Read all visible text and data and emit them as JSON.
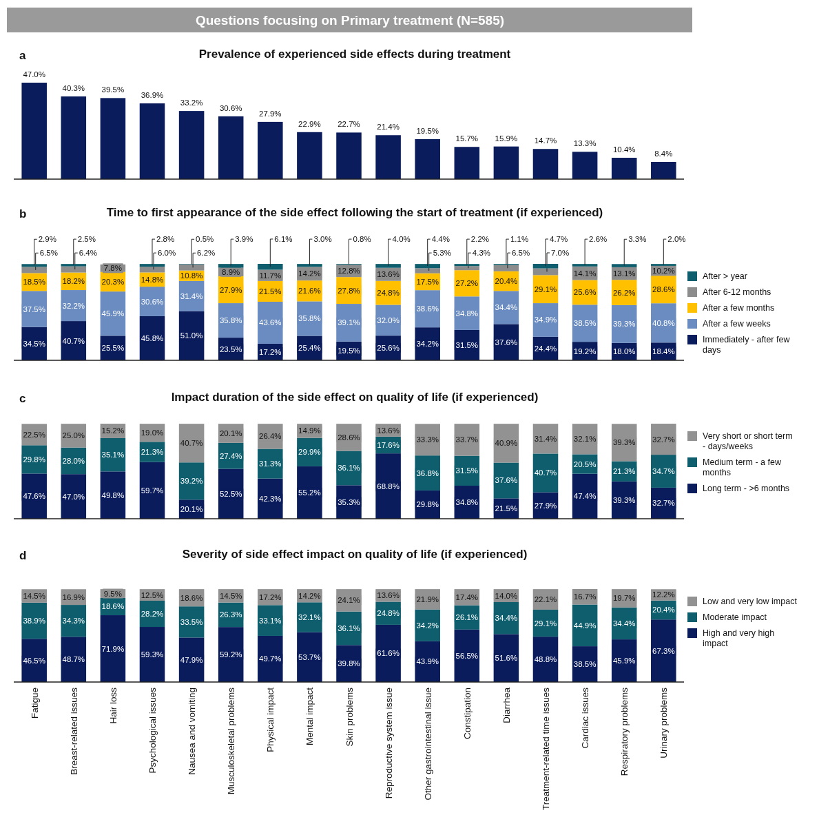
{
  "chart_data": [
    {
      "type": "bar",
      "title": "Questions focusing on Primary treatment (N=585)",
      "subtitle": "Prevalence of experienced side effects during treatment",
      "annotations": [
        "a"
      ],
      "categories": [
        null,
        null,
        null,
        null,
        null,
        null,
        null,
        null,
        null,
        null,
        null,
        null,
        null,
        null,
        null,
        null,
        null
      ],
      "tick_labels": false,
      "series": [
        {
          "color": "#0b1c5c",
          "values": [
            47.0,
            40.3,
            39.5,
            36.9,
            33.2,
            30.6,
            27.9,
            22.9,
            22.7,
            21.4,
            19.5,
            15.7,
            15.9,
            14.7,
            13.3,
            10.4,
            8.4
          ],
          "value_labels": [
            "47.0%",
            "40.3%",
            "39.5%",
            "36.9%",
            "33.2%",
            "30.6%",
            "27.9%",
            "22.9%",
            "22.7%",
            "21.4%",
            "19.5%",
            "15.7%",
            "15.9%",
            "14.7%",
            "13.3%",
            "10.4%",
            "8.4%"
          ]
        }
      ]
    },
    {
      "type": "bar",
      "stacked": true,
      "title": "Time to first appearance of the side effect following the start of treatment (if experienced)",
      "annotations": [
        "b"
      ],
      "categories": [
        null,
        null,
        null,
        null,
        null,
        null,
        null,
        null,
        null,
        null,
        null,
        null,
        null,
        null,
        null,
        null,
        null
      ],
      "tick_labels": false,
      "legend": "right",
      "series": [
        {
          "name": "Immediately - after few days",
          "color": "#0b1c5c",
          "values": [
            34.5,
            40.7,
            25.5,
            45.8,
            51.0,
            23.5,
            17.2,
            25.4,
            19.5,
            25.6,
            34.2,
            31.5,
            37.6,
            24.4,
            19.2,
            18.0,
            18.4
          ],
          "value_labels": [
            "34.5%",
            "40.7%",
            "25.5%",
            "45.8%",
            "51.0%",
            "23.5%",
            "17.2%",
            "25.4%",
            "19.5%",
            "25.6%",
            "34.2%",
            "31.5%",
            "37.6%",
            "24.4%",
            "19.2%",
            "18.0%",
            "18.4%"
          ]
        },
        {
          "name": "After a few weeks",
          "color": "#6b8cc0",
          "values": [
            37.5,
            32.2,
            45.9,
            30.6,
            31.4,
            35.8,
            43.6,
            35.8,
            39.1,
            32.0,
            38.6,
            34.8,
            34.4,
            34.9,
            38.5,
            39.3,
            40.8
          ],
          "value_labels": [
            "37.5%",
            "32.2%",
            "45.9%",
            "30.6%",
            "31.4%",
            "35.8%",
            "43.6%",
            "35.8%",
            "39.1%",
            "32.0%",
            "38.6%",
            "34.8%",
            "34.4%",
            "34.9%",
            "38.5%",
            "39.3%",
            "40.8%"
          ]
        },
        {
          "name": "After a few months",
          "color": "#ffc000",
          "values": [
            18.5,
            18.2,
            20.3,
            14.8,
            10.8,
            27.9,
            21.5,
            21.6,
            27.8,
            24.8,
            17.5,
            27.2,
            20.4,
            29.1,
            25.6,
            26.2,
            28.6
          ],
          "value_labels": [
            "18.5%",
            "18.2%",
            "20.3%",
            "14.8%",
            "10.8%",
            "27.9%",
            "21.5%",
            "21.6%",
            "27.8%",
            "24.8%",
            "17.5%",
            "27.2%",
            "20.4%",
            "29.1%",
            "25.6%",
            "26.2%",
            "28.6%"
          ]
        },
        {
          "name": "After 6-12 months",
          "color": "#8c8c8c",
          "values": [
            6.5,
            6.4,
            7.8,
            6.0,
            6.2,
            8.9,
            11.7,
            14.2,
            12.8,
            13.6,
            5.3,
            4.3,
            6.5,
            7.0,
            14.1,
            13.1,
            10.2
          ],
          "value_labels": [
            "6.5%",
            "6.4%",
            "7.8%",
            "6.0%",
            "6.2%",
            "8.9%",
            "11.7%",
            "14.2%",
            "12.8%",
            "13.6%",
            "5.3%",
            "4.3%",
            "6.5%",
            "7.0%",
            "14.1%",
            "13.1%",
            "10.2%"
          ]
        },
        {
          "name": "After > year",
          "color": "#0f5e6e",
          "values": [
            2.9,
            2.5,
            null,
            2.8,
            0.5,
            3.9,
            6.1,
            3.0,
            0.8,
            4.0,
            4.4,
            2.2,
            1.1,
            4.7,
            2.6,
            3.3,
            2.0
          ],
          "value_labels": [
            "2.9%",
            "2.5%",
            null,
            "2.8%",
            "0.5%",
            "3.9%",
            "6.1%",
            "3.0%",
            "0.8%",
            "4.0%",
            "4.4%",
            "2.2%",
            "1.1%",
            "4.7%",
            "2.6%",
            "3.3%",
            "2.0%"
          ]
        }
      ]
    },
    {
      "type": "bar",
      "stacked": true,
      "title": "Impact duration of the side effect on quality of life (if experienced)",
      "annotations": [
        "c"
      ],
      "categories": [
        null,
        null,
        null,
        null,
        null,
        null,
        null,
        null,
        null,
        null,
        null,
        null,
        null,
        null,
        null,
        null,
        null
      ],
      "tick_labels": false,
      "legend": "right",
      "series": [
        {
          "name": "Long term - >6 months",
          "color": "#0b1c5c",
          "values": [
            47.6,
            47.0,
            49.8,
            59.7,
            20.1,
            52.5,
            42.3,
            55.2,
            35.3,
            68.8,
            29.8,
            34.8,
            21.5,
            27.9,
            47.4,
            39.3,
            32.7
          ],
          "value_labels": [
            "47.6%",
            "47.0%",
            "49.8%",
            "59.7%",
            "20.1%",
            "52.5%",
            "42.3%",
            "55.2%",
            "35.3%",
            "68.8%",
            "29.8%",
            "34.8%",
            "21.5%",
            "27.9%",
            "47.4%",
            "39.3%",
            "32.7%"
          ]
        },
        {
          "name": "Medium term - a few months",
          "color": "#0f5e6e",
          "values": [
            29.8,
            28.0,
            35.1,
            21.3,
            39.2,
            27.4,
            31.3,
            29.9,
            36.1,
            17.6,
            36.8,
            31.5,
            37.6,
            40.7,
            20.5,
            21.3,
            34.7
          ],
          "value_labels": [
            "29.8%",
            "28.0%",
            "35.1%",
            "21.3%",
            "39.2%",
            "27.4%",
            "31.3%",
            "29.9%",
            "36.1%",
            "17.6%",
            "36.8%",
            "31.5%",
            "37.6%",
            "40.7%",
            "20.5%",
            "21.3%",
            "34.7%"
          ]
        },
        {
          "name": "Very short or short term - days/weeks",
          "color": "#929292",
          "values": [
            22.5,
            25.0,
            15.2,
            19.0,
            40.7,
            20.1,
            26.4,
            14.9,
            28.6,
            13.6,
            33.3,
            33.7,
            40.9,
            31.4,
            32.1,
            39.3,
            32.7
          ],
          "value_labels": [
            "22.5%",
            "25.0%",
            "15.2%",
            "19.0%",
            "40.7%",
            "20.1%",
            "26.4%",
            "14.9%",
            "28.6%",
            "13.6%",
            "33.3%",
            "33.7%",
            "40.9%",
            "31.4%",
            "32.1%",
            "39.3%",
            "32.7%"
          ]
        }
      ]
    },
    {
      "type": "bar",
      "stacked": true,
      "title": "Severity of side effect impact on quality of life (if experienced)",
      "annotations": [
        "d"
      ],
      "categories": [
        "Fatigue",
        "Breast-related issues",
        "Hair loss",
        "Psychological issues",
        "Nausea and vomiting",
        "Musculoskeletal problems",
        "Physical impact",
        "Mental impact",
        "Skin problems",
        "Reproductive system issue",
        "Other gastrointestinal issue",
        "Constipation",
        "Diarrhea",
        "Treatment-related time issues",
        "Cardiac issues",
        "Respiratory problems",
        "Urinary problems"
      ],
      "tick_labels": "x",
      "legend": "right",
      "series": [
        {
          "name": "High and very high impact",
          "color": "#0b1c5c",
          "values": [
            46.5,
            48.7,
            71.9,
            59.3,
            47.9,
            59.2,
            49.7,
            53.7,
            39.8,
            61.6,
            43.9,
            56.5,
            51.6,
            48.8,
            38.5,
            45.9,
            67.3
          ],
          "value_labels": [
            "46.5%",
            "48.7%",
            "71.9%",
            "59.3%",
            "47.9%",
            "59.2%",
            "49.7%",
            "53.7%",
            "39.8%",
            "61.6%",
            "43.9%",
            "56.5%",
            "51.6%",
            "48.8%",
            "38.5%",
            "45.9%",
            "67.3%"
          ]
        },
        {
          "name": "Moderate impact",
          "color": "#0f5e6e",
          "values": [
            38.9,
            34.3,
            18.6,
            28.2,
            33.5,
            26.3,
            33.1,
            32.1,
            36.1,
            24.8,
            34.2,
            26.1,
            34.4,
            29.1,
            44.9,
            34.4,
            20.4
          ],
          "value_labels": [
            "38.9%",
            "34.3%",
            "18.6%",
            "28.2%",
            "33.5%",
            "26.3%",
            "33.1%",
            "32.1%",
            "36.1%",
            "24.8%",
            "34.2%",
            "26.1%",
            "34.4%",
            "29.1%",
            "44.9%",
            "34.4%",
            "20.4%"
          ]
        },
        {
          "name": "Low and very low impact",
          "color": "#929292",
          "values": [
            14.5,
            16.9,
            9.5,
            12.5,
            18.6,
            14.5,
            17.2,
            14.2,
            24.1,
            13.6,
            21.9,
            17.4,
            14.0,
            22.1,
            16.7,
            19.7,
            12.2
          ],
          "value_labels": [
            "14.5%",
            "16.9%",
            "9.5%",
            "12.5%",
            "18.6%",
            "14.5%",
            "17.2%",
            "14.2%",
            "24.1%",
            "13.6%",
            "21.9%",
            "17.4%",
            "14.0%",
            "22.1%",
            "16.7%",
            "19.7%",
            "12.2%"
          ]
        }
      ]
    }
  ]
}
